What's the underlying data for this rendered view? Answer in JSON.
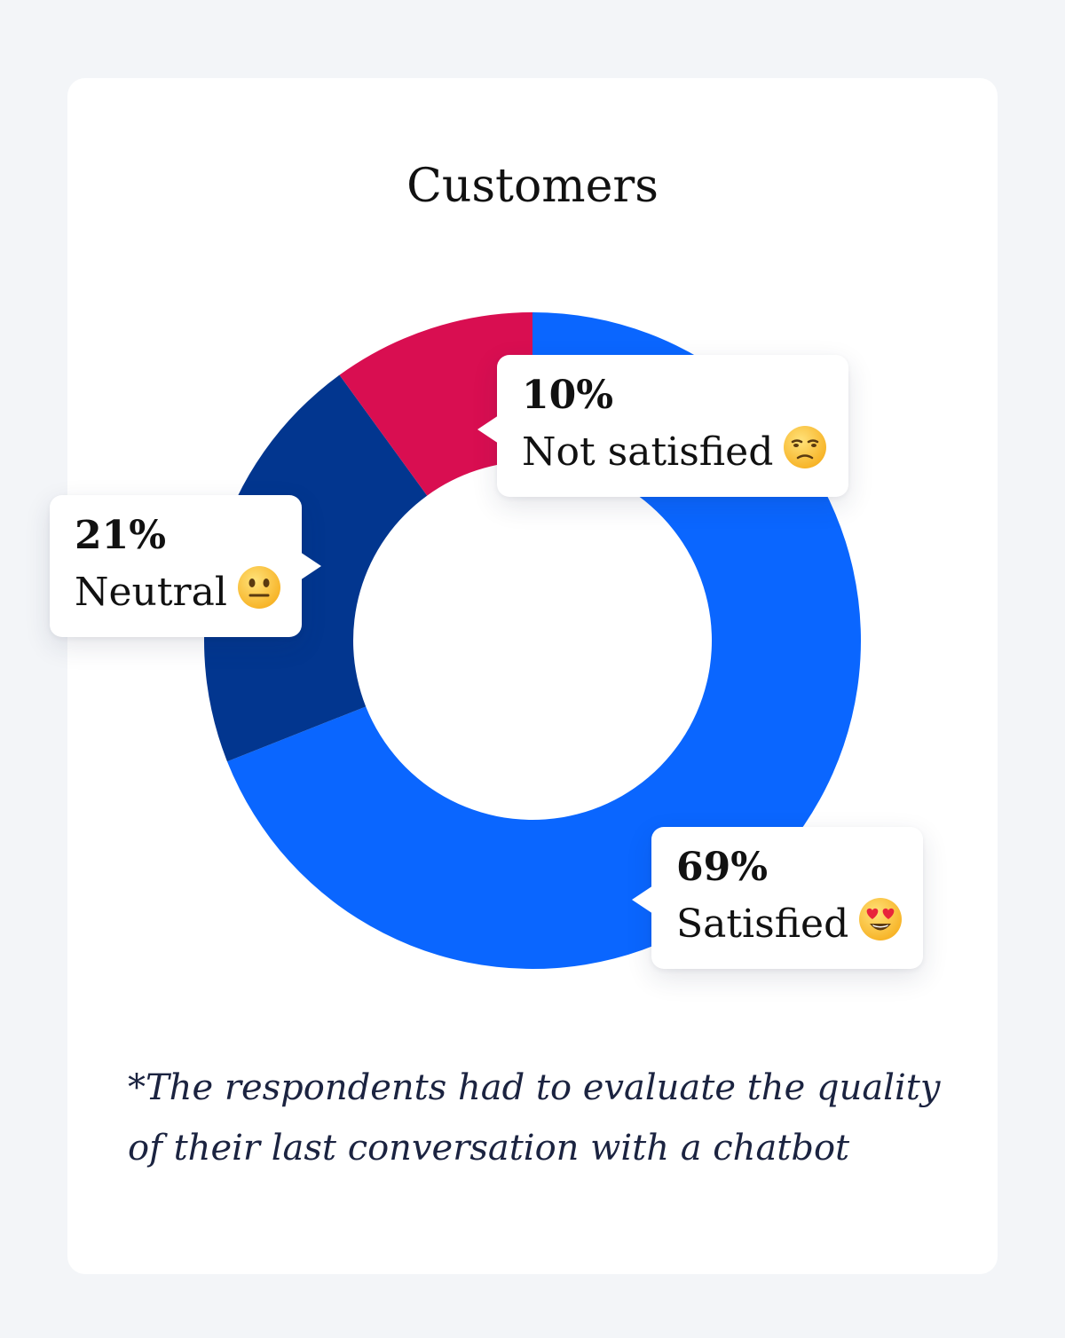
{
  "card": {
    "title": "Customers",
    "footnote": "*The respondents had to evaluate the quality of their last conversation with a chatbot"
  },
  "chart_data": {
    "type": "pie",
    "title": "Customers",
    "donut": true,
    "slices": [
      {
        "label": "Satisfied",
        "value": 69,
        "value_label": "69%",
        "color": "#0a66ff",
        "emoji": "smiling-face-with-heart-eyes-icon"
      },
      {
        "label": "Neutral",
        "value": 21,
        "value_label": "21%",
        "color": "#02368f",
        "emoji": "neutral-face-icon"
      },
      {
        "label": "Not satisfied",
        "value": 10,
        "value_label": "10%",
        "color": "#d90e51",
        "emoji": "unamused-face-icon"
      }
    ]
  }
}
